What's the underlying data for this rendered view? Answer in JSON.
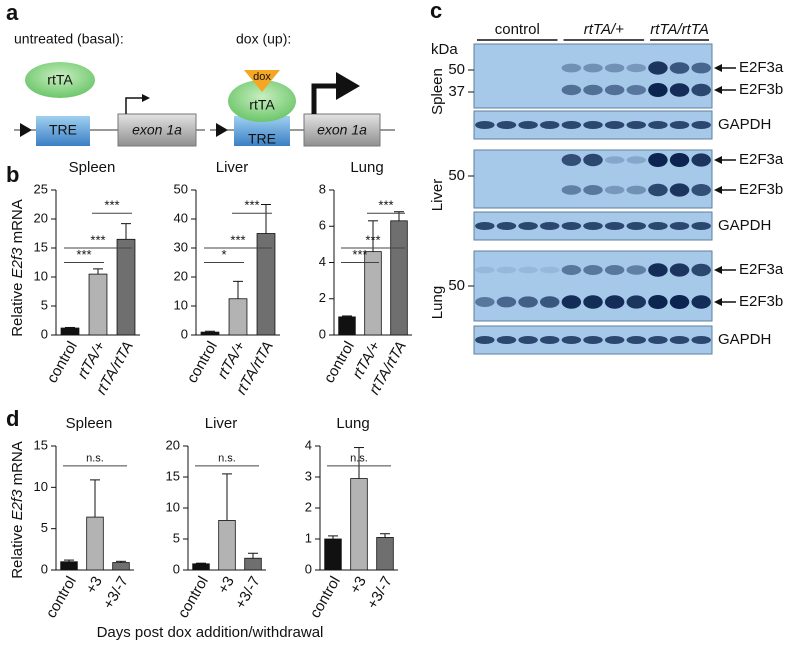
{
  "figure": {
    "panel_labels": {
      "a": "a",
      "b": "b",
      "c": "c",
      "d": "d"
    },
    "diagram": {
      "basal": {
        "title": "untreated (basal):",
        "activator": "rtTA",
        "promoter": "TRE",
        "exon": "exon 1a"
      },
      "induced": {
        "title": "dox (up):",
        "drug": "dox",
        "activator": "rtTA",
        "promoter": "TRE",
        "exon": "exon 1a"
      }
    },
    "blot": {
      "groups": [
        "control",
        "rtTA/+",
        "rtTA/rtTA"
      ],
      "unit": "kDa",
      "tissues": [
        {
          "name": "Spleen",
          "markers": [
            50,
            37
          ],
          "bands": [
            "E2F3a",
            "E2F3b"
          ],
          "loading": "GAPDH"
        },
        {
          "name": "Liver",
          "markers": [
            50
          ],
          "bands": [
            "E2F3a",
            "E2F3b"
          ],
          "loading": "GAPDH"
        },
        {
          "name": "Lung",
          "markers": [
            50
          ],
          "bands": [
            "E2F3a",
            "E2F3b"
          ],
          "loading": "GAPDH"
        }
      ]
    },
    "b_y_label": [
      "Relative ",
      "E2f3",
      " mRNA"
    ],
    "d_y_label": [
      "Relative ",
      "E2f3",
      " mRNA"
    ],
    "d_x_label": "Days post dox addition/withdrawal"
  },
  "chart_data": [
    {
      "type": "bar",
      "title": "Spleen",
      "categories": [
        "control",
        "rtTA/+",
        "rtTA/rtTA"
      ],
      "values": [
        1.2,
        10.5,
        16.5
      ],
      "errors": [
        0.1,
        0.9,
        2.7
      ],
      "colors": [
        "#111111",
        "#b3b3b3",
        "#6f6f6f"
      ],
      "ylim": [
        0,
        25
      ],
      "yticks": [
        0,
        5,
        10,
        15,
        20,
        25
      ],
      "annotations": [
        "***",
        "***",
        "***"
      ]
    },
    {
      "type": "bar",
      "title": "Liver",
      "categories": [
        "control",
        "rtTA/+",
        "rtTA/rtTA"
      ],
      "values": [
        1,
        12.5,
        35
      ],
      "errors": [
        0.3,
        6,
        10
      ],
      "colors": [
        "#111111",
        "#b3b3b3",
        "#6f6f6f"
      ],
      "ylim": [
        0,
        50
      ],
      "yticks": [
        0,
        10,
        20,
        30,
        40,
        50
      ],
      "annotations": [
        "*",
        "***",
        "***"
      ]
    },
    {
      "type": "bar",
      "title": "Lung",
      "categories": [
        "control",
        "rtTA/+",
        "rtTA/rtTA"
      ],
      "values": [
        1,
        4.6,
        6.3
      ],
      "errors": [
        0.05,
        1.7,
        0.5
      ],
      "colors": [
        "#111111",
        "#b3b3b3",
        "#6f6f6f"
      ],
      "ylim": [
        0,
        8
      ],
      "yticks": [
        0,
        2,
        4,
        6,
        8
      ],
      "annotations": [
        "***",
        "***",
        "***"
      ]
    },
    {
      "type": "bar",
      "title": "Spleen",
      "categories": [
        "control",
        "+3",
        "+3/-7"
      ],
      "values": [
        1,
        6.4,
        0.9
      ],
      "errors": [
        0.2,
        4.5,
        0.15
      ],
      "colors": [
        "#111111",
        "#b3b3b3",
        "#6f6f6f"
      ],
      "ylim": [
        0,
        15
      ],
      "yticks": [
        0,
        5,
        10,
        15
      ],
      "annotations": [
        "n.s."
      ]
    },
    {
      "type": "bar",
      "title": "Liver",
      "categories": [
        "control",
        "+3",
        "+3/-7"
      ],
      "values": [
        1,
        8,
        1.9
      ],
      "errors": [
        0.1,
        7.5,
        0.8
      ],
      "colors": [
        "#111111",
        "#b3b3b3",
        "#6f6f6f"
      ],
      "ylim": [
        0,
        20
      ],
      "yticks": [
        0,
        5,
        10,
        15,
        20
      ],
      "annotations": [
        "n.s."
      ]
    },
    {
      "type": "bar",
      "title": "Lung",
      "categories": [
        "control",
        "+3",
        "+3/-7"
      ],
      "values": [
        1,
        2.95,
        1.05
      ],
      "errors": [
        0.1,
        1.0,
        0.12
      ],
      "colors": [
        "#111111",
        "#b3b3b3",
        "#6f6f6f"
      ],
      "ylim": [
        0,
        4
      ],
      "yticks": [
        0,
        1,
        2,
        3,
        4
      ],
      "annotations": [
        "n.s."
      ]
    }
  ]
}
